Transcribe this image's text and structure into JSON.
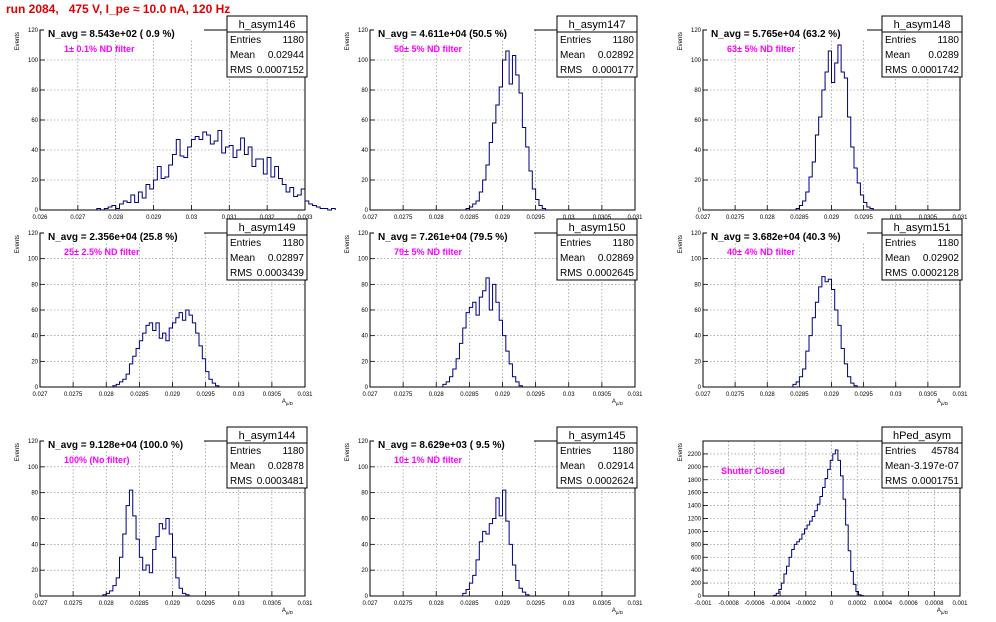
{
  "run_title": "run 2084,   475 V, I_pe ≈ 10.0 nA, 120 Hz",
  "colors": {
    "histogram": "#000080",
    "label": "#ff00ff",
    "grid": "#7f7f7f",
    "title": "#e00000"
  },
  "chart_data": [
    {
      "type": "bar",
      "name": "h_asym146",
      "stats": [
        [
          "Entries",
          "1180"
        ],
        [
          "Mean",
          "0.02944"
        ],
        [
          "RMS",
          "0.0007152"
        ]
      ],
      "header": "N_avg = 8.543e+02 ( 0.9 %)",
      "label": "1± 0.1% ND filter",
      "ylabel": "Events",
      "xlabel": "A_{µ/D}",
      "xlim": [
        0.026,
        0.033
      ],
      "ylim": [
        0,
        120
      ],
      "xticks": [
        "0.026",
        "0.027",
        "0.028",
        "0.029",
        "0.03",
        "0.031",
        "0.032",
        "0.033"
      ],
      "yticks": [
        "0",
        "20",
        "40",
        "60",
        "80",
        "100",
        "120"
      ],
      "bins": {
        "start": 0.0275,
        "width": 0.0001,
        "values": [
          1,
          0,
          1,
          2,
          3,
          1,
          4,
          6,
          5,
          10,
          5,
          12,
          8,
          17,
          14,
          20,
          29,
          21,
          22,
          30,
          37,
          47,
          36,
          35,
          42,
          47,
          49,
          47,
          52,
          50,
          44,
          46,
          53,
          38,
          42,
          43,
          35,
          40,
          48,
          37,
          42,
          29,
          34,
          34,
          24,
          35,
          22,
          29,
          21,
          17,
          12,
          15,
          9,
          10,
          14,
          6,
          4,
          3,
          2,
          1,
          1,
          0,
          1
        ]
      }
    },
    {
      "type": "bar",
      "name": "h_asym147",
      "stats": [
        [
          "Entries",
          "1180"
        ],
        [
          "Mean",
          "0.02892"
        ],
        [
          "RMS",
          "0.000177"
        ]
      ],
      "header": "N_avg = 4.611e+04 (50.5 %)",
      "label": "50± 5% ND filter",
      "ylabel": "Events",
      "xlabel": "A_{µ/D}",
      "xlim": [
        0.027,
        0.031
      ],
      "ylim": [
        0,
        120
      ],
      "xticks": [
        "0.027",
        "0.0275",
        "0.028",
        "0.0285",
        "0.029",
        "0.0295",
        "0.03",
        "0.0305",
        "0.031"
      ],
      "yticks": [
        "0",
        "20",
        "40",
        "60",
        "80",
        "100",
        "120"
      ],
      "bins": {
        "start": 0.02845,
        "width": 5e-05,
        "values": [
          1,
          2,
          4,
          6,
          12,
          20,
          30,
          45,
          58,
          70,
          82,
          100,
          106,
          84,
          103,
          90,
          78,
          55,
          42,
          26,
          14,
          7,
          3,
          1
        ]
      }
    },
    {
      "type": "bar",
      "name": "h_asym148",
      "stats": [
        [
          "Entries",
          "1180"
        ],
        [
          "Mean",
          "0.0289"
        ],
        [
          "RMS",
          "0.0001742"
        ]
      ],
      "header": "N_avg = 5.765e+04 (63.2 %)",
      "label": "63± 5% ND filter",
      "ylabel": "Events",
      "xlabel": "A_{µ/D}",
      "xlim": [
        0.027,
        0.031
      ],
      "ylim": [
        0,
        120
      ],
      "xticks": [
        "0.027",
        "0.0275",
        "0.028",
        "0.0285",
        "0.029",
        "0.0295",
        "0.03",
        "0.0305",
        "0.031"
      ],
      "yticks": [
        "0",
        "20",
        "40",
        "60",
        "80",
        "100",
        "120"
      ],
      "bins": {
        "start": 0.02845,
        "width": 5e-05,
        "values": [
          1,
          3,
          6,
          12,
          22,
          32,
          50,
          62,
          80,
          92,
          106,
          85,
          98,
          110,
          92,
          88,
          62,
          42,
          28,
          18,
          10,
          5,
          2,
          1
        ]
      }
    },
    {
      "type": "bar",
      "name": "h_asym149",
      "stats": [
        [
          "Entries",
          "1180"
        ],
        [
          "Mean",
          "0.02897"
        ],
        [
          "RMS",
          "0.0003439"
        ]
      ],
      "header": "N_avg = 2.356e+04 (25.8 %)",
      "label": "25± 2.5% ND filter",
      "ylabel": "Events",
      "xlabel": "A_{µ/D}",
      "xlim": [
        0.027,
        0.031
      ],
      "ylim": [
        0,
        120
      ],
      "xticks": [
        "0.027",
        "0.0275",
        "0.028",
        "0.0285",
        "0.029",
        "0.0295",
        "0.03",
        "0.0305",
        "0.031"
      ],
      "yticks": [
        "0",
        "20",
        "40",
        "60",
        "80",
        "100",
        "120"
      ],
      "bins": {
        "start": 0.0281,
        "width": 5e-05,
        "values": [
          1,
          2,
          4,
          6,
          10,
          18,
          24,
          30,
          36,
          42,
          48,
          50,
          44,
          50,
          38,
          42,
          36,
          46,
          50,
          54,
          58,
          52,
          60,
          56,
          50,
          42,
          32,
          22,
          12,
          6,
          3,
          1
        ]
      }
    },
    {
      "type": "bar",
      "name": "h_asym150",
      "stats": [
        [
          "Entries",
          "1180"
        ],
        [
          "Mean",
          "0.02869"
        ],
        [
          "RMS",
          "0.0002645"
        ]
      ],
      "header": "N_avg = 7.261e+04 (79.5 %)",
      "label": "79± 5% ND filter",
      "ylabel": "Events",
      "xlabel": "A_{µ/D}",
      "xlim": [
        0.027,
        0.031
      ],
      "ylim": [
        0,
        120
      ],
      "xticks": [
        "0.027",
        "0.0275",
        "0.028",
        "0.0285",
        "0.029",
        "0.0295",
        "0.03",
        "0.0305",
        "0.031"
      ],
      "yticks": [
        "0",
        "20",
        "40",
        "60",
        "80",
        "100",
        "120"
      ],
      "bins": {
        "start": 0.0281,
        "width": 5e-05,
        "values": [
          2,
          4,
          8,
          14,
          22,
          34,
          46,
          58,
          62,
          66,
          56,
          70,
          75,
          85,
          60,
          80,
          66,
          52,
          40,
          28,
          18,
          8,
          4,
          1
        ]
      }
    },
    {
      "type": "bar",
      "name": "h_asym151",
      "stats": [
        [
          "Entries",
          "1180"
        ],
        [
          "Mean",
          "0.02902"
        ],
        [
          "RMS",
          "0.0002128"
        ]
      ],
      "header": "N_avg = 3.682e+04 (40.3 %)",
      "label": "40± 4% ND filter",
      "ylabel": "Events",
      "xlabel": "A_{µ/D}",
      "xlim": [
        0.027,
        0.031
      ],
      "ylim": [
        0,
        120
      ],
      "xticks": [
        "0.027",
        "0.0275",
        "0.028",
        "0.0285",
        "0.029",
        "0.0295",
        "0.03",
        "0.0305",
        "0.031"
      ],
      "yticks": [
        "0",
        "20",
        "40",
        "60",
        "80",
        "100",
        "120"
      ],
      "bins": {
        "start": 0.0284,
        "width": 5e-05,
        "values": [
          2,
          4,
          8,
          14,
          28,
          40,
          54,
          66,
          78,
          86,
          82,
          84,
          76,
          60,
          48,
          30,
          18,
          8,
          3,
          1
        ]
      }
    },
    {
      "type": "bar",
      "name": "h_asym144",
      "stats": [
        [
          "Entries",
          "1180"
        ],
        [
          "Mean",
          "0.02878"
        ],
        [
          "RMS",
          "0.0003481"
        ]
      ],
      "header": "N_avg = 9.128e+04 (100.0 %)",
      "label": "100% (No filter)",
      "ylabel": "Events",
      "xlabel": "A_{µ/D}",
      "xlim": [
        0.027,
        0.031
      ],
      "ylim": [
        0,
        120
      ],
      "xticks": [
        "0.027",
        "0.0275",
        "0.028",
        "0.0285",
        "0.029",
        "0.0295",
        "0.03",
        "0.0305",
        "0.031"
      ],
      "yticks": [
        "0",
        "20",
        "40",
        "60",
        "80",
        "100",
        "120"
      ],
      "bins": {
        "start": 0.02795,
        "width": 5e-05,
        "values": [
          1,
          2,
          4,
          8,
          14,
          30,
          48,
          70,
          82,
          62,
          44,
          30,
          20,
          24,
          18,
          36,
          46,
          56,
          52,
          60,
          48,
          30,
          14,
          6,
          2,
          1
        ]
      }
    },
    {
      "type": "bar",
      "name": "h_asym145",
      "stats": [
        [
          "Entries",
          "1180"
        ],
        [
          "Mean",
          "0.02914"
        ],
        [
          "RMS",
          "0.0002624"
        ]
      ],
      "header": "N_avg = 8.629e+03 ( 9.5 %)",
      "label": "10± 1% ND filter",
      "ylabel": "Events",
      "xlabel": "A_{µ/D}",
      "xlim": [
        0.027,
        0.031
      ],
      "ylim": [
        0,
        120
      ],
      "xticks": [
        "0.027",
        "0.0275",
        "0.028",
        "0.0285",
        "0.029",
        "0.0295",
        "0.03",
        "0.0305",
        "0.031"
      ],
      "yticks": [
        "0",
        "20",
        "40",
        "60",
        "80",
        "100",
        "120"
      ],
      "bins": {
        "start": 0.0284,
        "width": 5e-05,
        "values": [
          2,
          5,
          10,
          16,
          28,
          42,
          50,
          48,
          56,
          60,
          76,
          62,
          82,
          58,
          40,
          24,
          12,
          6,
          3,
          1
        ]
      }
    },
    {
      "type": "bar",
      "name": "hPed_asym",
      "stats": [
        [
          "Entries",
          "45784"
        ],
        [
          "Mean",
          "-3.197e-07"
        ],
        [
          "RMS",
          "0.0001751"
        ]
      ],
      "header": "",
      "label": "Shutter Closed",
      "ylabel": "Events",
      "xlabel": "A_{µ/D}",
      "xlim": [
        -0.001,
        0.001
      ],
      "ylim": [
        0,
        2400
      ],
      "xticks": [
        "-0.001",
        "-0.0008",
        "-0.0006",
        "-0.0004",
        "-0.0002",
        "0",
        "0.0002",
        "0.0004",
        "0.0006",
        "0.0008",
        "0.001"
      ],
      "yticks": [
        "0",
        "200",
        "400",
        "600",
        "800",
        "1000",
        "1200",
        "1400",
        "1600",
        "1800",
        "2000",
        "2200"
      ],
      "bins": {
        "start": -0.00045,
        "width": 2e-05,
        "values": [
          10,
          40,
          100,
          200,
          340,
          460,
          600,
          720,
          800,
          840,
          880,
          960,
          1040,
          1100,
          1160,
          1230,
          1320,
          1420,
          1540,
          1680,
          1820,
          1960,
          2100,
          2200,
          2260,
          2100,
          1860,
          1500,
          1100,
          700,
          380,
          180,
          70,
          20,
          5
        ]
      }
    }
  ]
}
